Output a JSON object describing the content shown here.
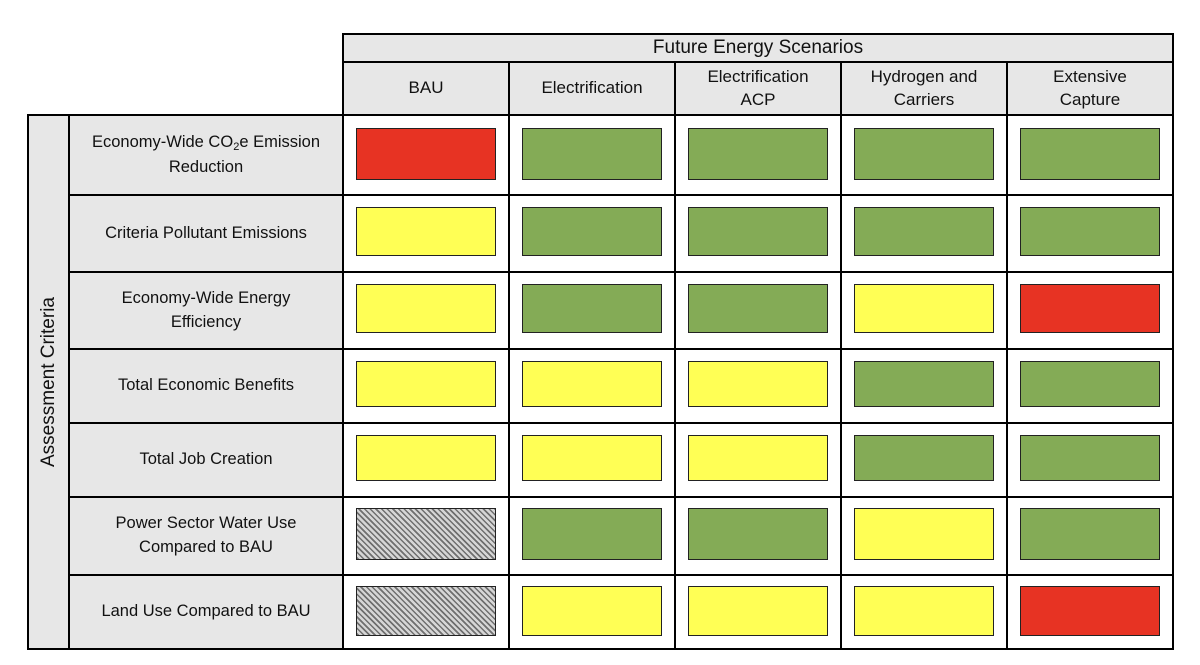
{
  "title": "Future Energy Scenarios",
  "axis_label": "Assessment Criteria",
  "scenarios": [
    "BAU",
    "Electrification",
    "Electrification ACP",
    "Hydrogen and Carriers",
    "Extensive Capture"
  ],
  "criteria": [
    "Economy-Wide CO₂e Emission Reduction",
    "Criteria Pollutant Emissions",
    "Economy-Wide Energy Efficiency",
    "Total Economic Benefits",
    "Total Job Creation",
    "Power Sector Water Use Compared to BAU",
    "Land Use Compared to BAU"
  ],
  "colors": {
    "green": "#84ab56",
    "yellow": "#ffff55",
    "red": "#e73323",
    "hatch": "#b5b5b5",
    "header_bg": "#e7e7e7"
  },
  "ratings": [
    [
      "red",
      "green",
      "green",
      "green",
      "green"
    ],
    [
      "yellow",
      "green",
      "green",
      "green",
      "green"
    ],
    [
      "yellow",
      "green",
      "green",
      "yellow",
      "red"
    ],
    [
      "yellow",
      "yellow",
      "yellow",
      "green",
      "green"
    ],
    [
      "yellow",
      "yellow",
      "yellow",
      "green",
      "green"
    ],
    [
      "hatch",
      "green",
      "green",
      "yellow",
      "green"
    ],
    [
      "hatch",
      "yellow",
      "yellow",
      "yellow",
      "red"
    ]
  ]
}
